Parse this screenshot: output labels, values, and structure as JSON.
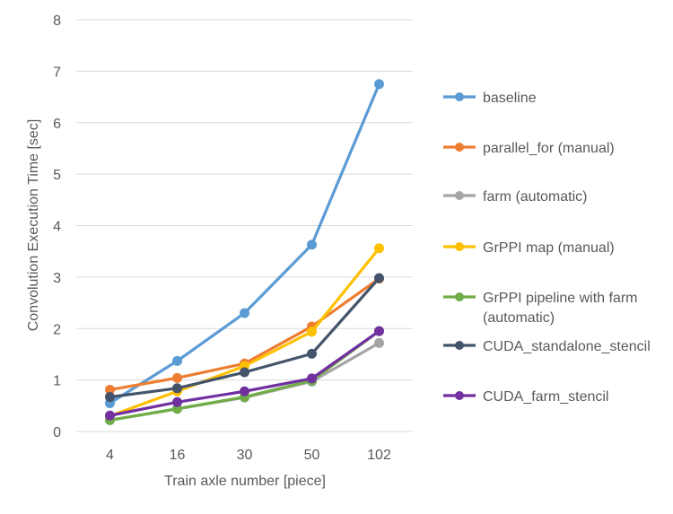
{
  "chart_data": {
    "type": "line",
    "title": "",
    "xlabel": "Train axle number [piece]",
    "ylabel": "Convolution Execution Time [sec]",
    "categories": [
      "4",
      "16",
      "30",
      "50",
      "102"
    ],
    "ylim": [
      0,
      8
    ],
    "yticks": [
      0,
      1,
      2,
      3,
      4,
      5,
      6,
      7,
      8
    ],
    "grid": true,
    "legend_position": "right",
    "series": [
      {
        "name": "baseline",
        "color": "#5b9bd5",
        "values": [
          0.55,
          1.37,
          2.3,
          3.63,
          6.75
        ]
      },
      {
        "name": "parallel_for (manual)",
        "color": "#ed7d31",
        "values": [
          0.81,
          1.04,
          1.32,
          2.04,
          2.97
        ]
      },
      {
        "name": "farm (automatic)",
        "color": "#a5a5a5",
        "values": [
          0.22,
          0.44,
          0.66,
          0.97,
          1.72
        ]
      },
      {
        "name": "GrPPI map (manual)",
        "color": "#ffc000",
        "values": [
          0.3,
          0.78,
          1.27,
          1.94,
          3.56
        ]
      },
      {
        "name": "GrPPI pipeline with farm (automatic)",
        "label_lines": [
          "GrPPI pipeline with farm",
          "(automatic)"
        ],
        "color": "#70ad47",
        "values": [
          0.22,
          0.44,
          0.67,
          0.99,
          1.95
        ]
      },
      {
        "name": "CUDA_standalone_stencil",
        "color": "#44546a",
        "values": [
          0.67,
          0.84,
          1.15,
          1.51,
          2.98
        ]
      },
      {
        "name": "CUDA_farm_stencil",
        "color": "#7030a0",
        "values": [
          0.31,
          0.57,
          0.78,
          1.03,
          1.95
        ]
      }
    ]
  }
}
